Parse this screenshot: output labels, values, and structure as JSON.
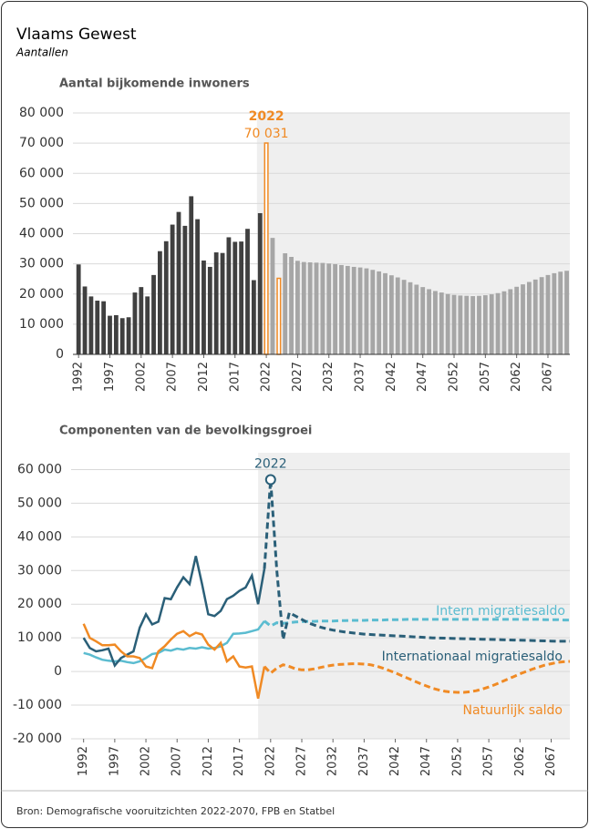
{
  "title": "Vlaams Gewest",
  "subtitle": "Aantallen",
  "source": "Bron: Demografische vooruitzichten 2022-2070, FPB en Statbel",
  "chart_data": [
    {
      "type": "bar",
      "title": "Aantal bijkomende inwoners",
      "x": [
        1992,
        1993,
        1994,
        1995,
        1996,
        1997,
        1998,
        1999,
        2000,
        2001,
        2002,
        2003,
        2004,
        2005,
        2006,
        2007,
        2008,
        2009,
        2010,
        2011,
        2012,
        2013,
        2014,
        2015,
        2016,
        2017,
        2018,
        2019,
        2020,
        2021,
        2022,
        2023,
        2024,
        2025,
        2026,
        2027,
        2028,
        2029,
        2030,
        2031,
        2032,
        2033,
        2034,
        2035,
        2036,
        2037,
        2038,
        2039,
        2040,
        2041,
        2042,
        2043,
        2044,
        2045,
        2046,
        2047,
        2048,
        2049,
        2050,
        2051,
        2052,
        2053,
        2054,
        2055,
        2056,
        2057,
        2058,
        2059,
        2060,
        2061,
        2062,
        2063,
        2064,
        2065,
        2066,
        2067,
        2068,
        2069,
        2070
      ],
      "values": [
        29800,
        22500,
        19200,
        17800,
        17600,
        12800,
        13000,
        12000,
        12300,
        20500,
        22300,
        19200,
        26300,
        34200,
        37500,
        43000,
        47200,
        42600,
        52400,
        44800,
        31100,
        29000,
        33800,
        33600,
        38800,
        37300,
        37400,
        41600,
        24600,
        46800,
        70031,
        38600,
        25200,
        33500,
        32300,
        31000,
        30600,
        30500,
        30400,
        30300,
        30100,
        29900,
        29600,
        29300,
        29000,
        28800,
        28500,
        28000,
        27500,
        26900,
        26200,
        25500,
        24700,
        23900,
        23100,
        22300,
        21600,
        21000,
        20500,
        20000,
        19700,
        19500,
        19400,
        19300,
        19400,
        19600,
        19900,
        20300,
        20900,
        21600,
        22400,
        23200,
        24000,
        24800,
        25600,
        26300,
        26900,
        27400,
        27700
      ],
      "value_labels": [
        null,
        null,
        null,
        null,
        null,
        null,
        null,
        null,
        null,
        null,
        null,
        null,
        null,
        null,
        null,
        null,
        null,
        null,
        null,
        null,
        null,
        null,
        null,
        null,
        null,
        null,
        null,
        null,
        null,
        null,
        "70 031",
        null,
        null,
        null,
        null,
        null,
        null,
        null,
        null,
        null,
        null,
        null,
        null,
        null,
        null,
        null,
        null,
        null,
        null,
        null,
        null,
        null,
        null,
        null,
        null,
        null,
        null,
        null,
        null,
        null,
        null,
        null,
        null,
        null,
        null,
        null,
        null,
        null,
        null,
        null,
        null,
        null,
        null,
        null,
        null,
        null,
        null,
        null,
        null
      ],
      "colors": [
        "#404040",
        "#404040",
        "#404040",
        "#404040",
        "#404040",
        "#404040",
        "#404040",
        "#404040",
        "#404040",
        "#404040",
        "#404040",
        "#404040",
        "#404040",
        "#404040",
        "#404040",
        "#404040",
        "#404040",
        "#404040",
        "#404040",
        "#404040",
        "#404040",
        "#404040",
        "#404040",
        "#404040",
        "#404040",
        "#404040",
        "#404040",
        "#404040",
        "#404040",
        "#404040",
        "#f08a24",
        "#a6a6a6",
        "#f08a24",
        "#a6a6a6",
        "#a6a6a6",
        "#a6a6a6",
        "#a6a6a6",
        "#a6a6a6",
        "#a6a6a6",
        "#a6a6a6",
        "#a6a6a6",
        "#a6a6a6",
        "#a6a6a6",
        "#a6a6a6",
        "#a6a6a6",
        "#a6a6a6",
        "#a6a6a6",
        "#a6a6a6",
        "#a6a6a6",
        "#a6a6a6",
        "#a6a6a6",
        "#a6a6a6",
        "#a6a6a6",
        "#a6a6a6",
        "#a6a6a6",
        "#a6a6a6",
        "#a6a6a6",
        "#a6a6a6",
        "#a6a6a6",
        "#a6a6a6",
        "#a6a6a6",
        "#a6a6a6",
        "#a6a6a6",
        "#a6a6a6",
        "#a6a6a6",
        "#a6a6a6",
        "#a6a6a6",
        "#a6a6a6",
        "#a6a6a6",
        "#a6a6a6",
        "#a6a6a6",
        "#a6a6a6",
        "#a6a6a6",
        "#a6a6a6",
        "#a6a6a6",
        "#a6a6a6",
        "#a6a6a6",
        "#a6a6a6",
        "#a6a6a6"
      ],
      "outline_colors": [
        "#f08a24"
      ],
      "annotation": "2022",
      "annotation_at": 2022,
      "annotation_color": "#f08a24",
      "shade_from": 2020.5,
      "shade_color": "#efefef",
      "xlim": [
        1991.1,
        2070.5
      ],
      "xticks": [
        1992,
        1997,
        2002,
        2007,
        2012,
        2017,
        2022,
        2027,
        2032,
        2037,
        2042,
        2047,
        2052,
        2057,
        2062,
        2067
      ],
      "ylim": [
        0,
        80000
      ],
      "yticks": [
        0,
        {
          "value": 10000,
          "label": "10 000"
        },
        {
          "value": 20000,
          "label": "20 000"
        },
        {
          "value": 30000,
          "label": "30 000"
        },
        {
          "value": 40000,
          "label": "40 000"
        },
        {
          "value": 50000,
          "label": "50 000"
        },
        {
          "value": 60000,
          "label": "60 000"
        },
        {
          "value": 70000,
          "label": "70 000"
        },
        {
          "value": 80000,
          "label": "80 000"
        }
      ],
      "grid": true
    },
    {
      "type": "line",
      "title": "Componenten van de bevolkingsgroei",
      "x": [
        1992,
        1993,
        1994,
        1995,
        1996,
        1997,
        1998,
        1999,
        2000,
        2001,
        2002,
        2003,
        2004,
        2005,
        2006,
        2007,
        2008,
        2009,
        2010,
        2011,
        2012,
        2013,
        2014,
        2015,
        2016,
        2017,
        2018,
        2019,
        2020,
        2021,
        2022,
        2023,
        2024,
        2025,
        2026,
        2027,
        2028,
        2029,
        2030,
        2031,
        2032,
        2033,
        2034,
        2035,
        2036,
        2037,
        2038,
        2039,
        2040,
        2041,
        2042,
        2043,
        2044,
        2045,
        2046,
        2047,
        2048,
        2049,
        2050,
        2051,
        2052,
        2053,
        2054,
        2055,
        2056,
        2057,
        2058,
        2059,
        2060,
        2061,
        2062,
        2063,
        2064,
        2065,
        2066,
        2067,
        2068,
        2069,
        2070
      ],
      "series": [
        {
          "name": "Intern migratiesaldo",
          "color": "#5bbcd0",
          "values": [
            5500,
            5000,
            4200,
            3500,
            3200,
            3000,
            3200,
            2800,
            2500,
            3000,
            4000,
            5200,
            5500,
            6500,
            6200,
            6800,
            6500,
            7000,
            6800,
            7200,
            6800,
            7000,
            7500,
            8500,
            11200,
            11300,
            11500,
            12000,
            12500,
            15000,
            13500,
            14500,
            14300,
            14500,
            14700,
            14800,
            14900,
            14900,
            15000,
            15000,
            15000,
            15100,
            15100,
            15200,
            15200,
            15200,
            15300,
            15300,
            15300,
            15400,
            15400,
            15400,
            15500,
            15500,
            15500,
            15500,
            15500,
            15500,
            15500,
            15500,
            15500,
            15500,
            15500,
            15500,
            15500,
            15500,
            15500,
            15500,
            15500,
            15500,
            15500,
            15500,
            15500,
            15500,
            15400,
            15400,
            15400,
            15300,
            15300
          ]
        },
        {
          "name": "Internationaal migratiesaldo",
          "color": "#2a5f78",
          "values": [
            10000,
            7000,
            6000,
            6300,
            6800,
            1800,
            4000,
            5000,
            6000,
            13000,
            17000,
            14000,
            14800,
            21800,
            21500,
            25000,
            28000,
            26000,
            34300,
            26000,
            17000,
            16500,
            18000,
            21500,
            22500,
            24000,
            25000,
            28500,
            20000,
            30500,
            57000,
            30000,
            9500,
            17500,
            16500,
            15500,
            14500,
            13800,
            13200,
            12700,
            12300,
            12000,
            11700,
            11500,
            11300,
            11100,
            11000,
            10900,
            10800,
            10700,
            10600,
            10500,
            10400,
            10300,
            10200,
            10100,
            10000,
            9950,
            9900,
            9850,
            9800,
            9750,
            9700,
            9650,
            9600,
            9550,
            9500,
            9450,
            9400,
            9350,
            9300,
            9250,
            9200,
            9150,
            9100,
            9050,
            9000,
            9000,
            9000
          ]
        },
        {
          "name": "Natuurlijk saldo",
          "color": "#f08a24",
          "values": [
            14200,
            10000,
            9000,
            7800,
            7800,
            8000,
            6000,
            4500,
            4500,
            4000,
            1500,
            1000,
            6000,
            7500,
            9500,
            11200,
            12000,
            10500,
            11500,
            11000,
            8000,
            6500,
            8500,
            3000,
            4500,
            1500,
            1200,
            1500,
            -8000,
            1500,
            -500,
            1000,
            2000,
            1500,
            800,
            500,
            500,
            800,
            1200,
            1600,
            1900,
            2100,
            2200,
            2300,
            2300,
            2200,
            2000,
            1600,
            1000,
            300,
            -400,
            -1200,
            -2000,
            -2800,
            -3600,
            -4300,
            -5000,
            -5500,
            -5900,
            -6100,
            -6200,
            -6200,
            -6000,
            -5700,
            -5200,
            -4600,
            -3900,
            -3100,
            -2300,
            -1500,
            -700,
            0,
            700,
            1300,
            1900,
            2300,
            2700,
            2900,
            3000
          ]
        }
      ],
      "dashed_from": 2021,
      "annotation": "2022",
      "annotation_at": 2022,
      "annotation_series": 1,
      "shade_from": 2020,
      "shade_color": "#efefef",
      "xlim": [
        1990,
        2070
      ],
      "xticks": [
        1992,
        1997,
        2002,
        2007,
        2012,
        2017,
        2022,
        2027,
        2032,
        2037,
        2042,
        2047,
        2052,
        2057,
        2062,
        2067
      ],
      "ylim": [
        -20000,
        65000
      ],
      "yticks": [
        {
          "value": -20000,
          "label": "-20 000"
        },
        {
          "value": -10000,
          "label": "-10 000"
        },
        0,
        {
          "value": 10000,
          "label": "10 000"
        },
        {
          "value": 20000,
          "label": "20 000"
        },
        {
          "value": 30000,
          "label": "30 000"
        },
        {
          "value": 40000,
          "label": "40 000"
        },
        {
          "value": 50000,
          "label": "50 000"
        },
        {
          "value": 60000,
          "label": "60 000"
        }
      ],
      "grid": true
    }
  ]
}
